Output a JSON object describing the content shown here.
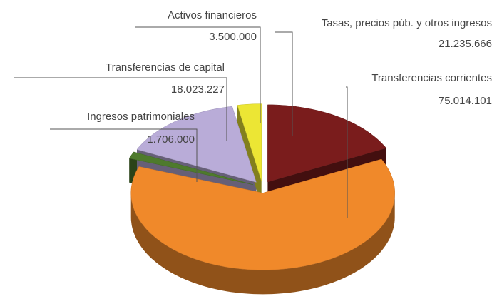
{
  "chart_data": {
    "type": "pie",
    "categories": [
      "Tasas, precios púb. y otros ingresos",
      "Transferencias corrientes",
      "Ingresos patrimoniales",
      "Transferencias de capital",
      "Activos financieros"
    ],
    "values": [
      21235666,
      75014101,
      1706000,
      18023227,
      3500000
    ],
    "value_labels": [
      "21.235.666",
      "75.014.101",
      "1.706.000",
      "18.023.227",
      "3.500.000"
    ],
    "colors": [
      "#7a1c1c",
      "#f0892a",
      "#4e7a2c",
      "#b9acd8",
      "#ece634"
    ]
  }
}
